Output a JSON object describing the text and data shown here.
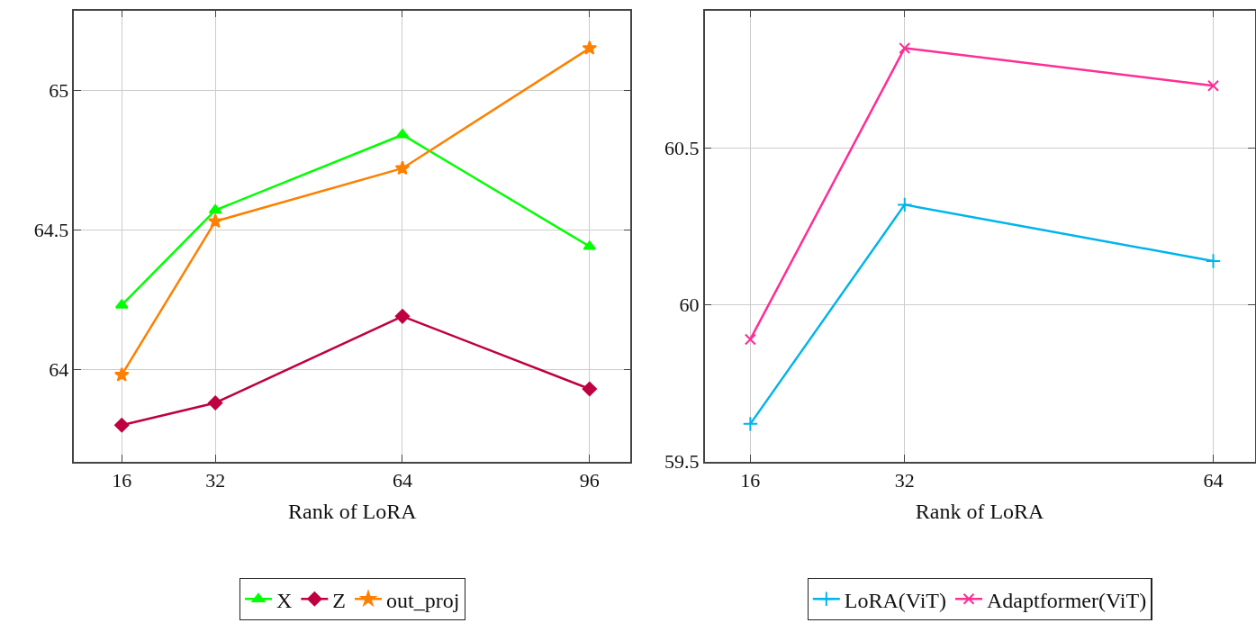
{
  "chart_data": [
    {
      "type": "line",
      "xlabel": "Rank of LoRA",
      "x": [
        16,
        32,
        64,
        96
      ],
      "xlim": [
        7.85,
        103
      ],
      "xticks": [
        16,
        32,
        64,
        96
      ],
      "ylim": [
        63.67,
        65.285
      ],
      "yticks": [
        64,
        64.5,
        65
      ],
      "grid": true,
      "legend": "bottom",
      "series": [
        {
          "name": "X",
          "color": "#00ff00",
          "marker": "triangle",
          "values": [
            64.23,
            64.57,
            64.84,
            64.44
          ]
        },
        {
          "name": "Z",
          "color": "#bf0040",
          "marker": "diamond",
          "values": [
            63.8,
            63.88,
            64.19,
            63.93
          ]
        },
        {
          "name": "out_proj",
          "color": "#ff8000",
          "marker": "star",
          "values": [
            63.98,
            64.53,
            64.72,
            65.15
          ]
        }
      ]
    },
    {
      "type": "line",
      "xlabel": "Rank of LoRA",
      "x": [
        16,
        32,
        64
      ],
      "xlim": [
        11.26,
        68.3
      ],
      "xticks": [
        16,
        32,
        64
      ],
      "ylim": [
        59.5,
        60.94
      ],
      "yticks": [
        59.5,
        60,
        60.5
      ],
      "grid": true,
      "legend": "bottom",
      "series": [
        {
          "name": "LoRA(ViT)",
          "color": "#00b4eb",
          "marker": "cross",
          "values": [
            59.62,
            60.32,
            60.14
          ]
        },
        {
          "name": "Adaptformer(ViT)",
          "color": "#ff2d96",
          "marker": "cross",
          "values": [
            59.89,
            60.82,
            60.7
          ]
        }
      ]
    }
  ]
}
